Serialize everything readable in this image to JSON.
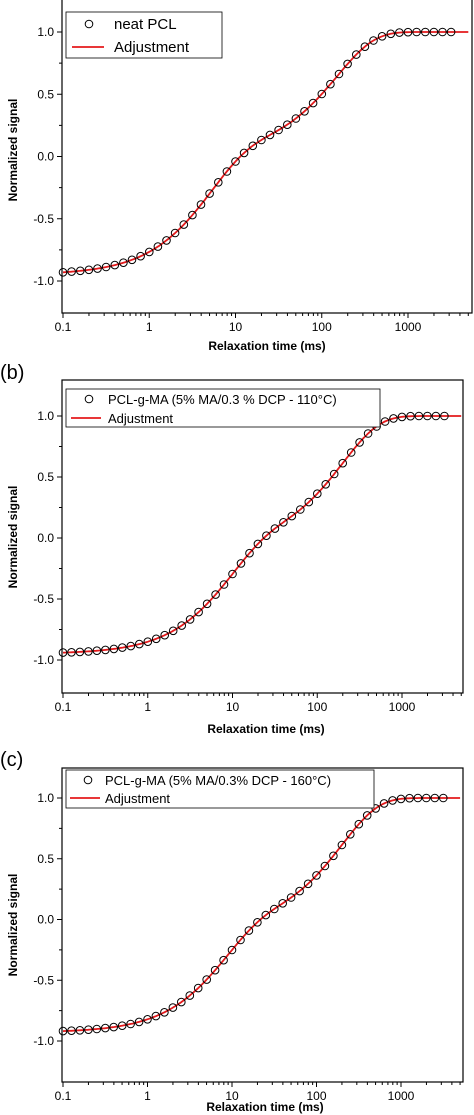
{
  "chart_data": [
    {
      "type": "scatter",
      "panel_label": "",
      "xlabel": "Relaxation time (ms)",
      "ylabel": "Normalized signal",
      "x_scale": "log",
      "xlim": [
        0.1,
        5000
      ],
      "ylim": [
        -1.25,
        1.25
      ],
      "x_ticks": [
        0.1,
        1,
        10,
        100,
        1000
      ],
      "x_tick_labels": [
        "0.1",
        "1",
        "10",
        "100",
        "1000"
      ],
      "y_ticks": [
        -1.0,
        -0.5,
        0.0,
        0.5,
        1.0
      ],
      "y_tick_labels": [
        "-1.0",
        "-0.5",
        "0.0",
        "0.5",
        "1.0"
      ],
      "legend_position": "top-left",
      "series": [
        {
          "name": "neat PCL",
          "kind": "markers",
          "marker": "open-circle",
          "color": "#000000",
          "model": {
            "y0": -0.95,
            "a1": 0.97,
            "t1": 150,
            "a2": 0.98,
            "t2": 5.0
          }
        },
        {
          "name": "Adjustment",
          "kind": "line",
          "color": "#e41a1c",
          "model": {
            "y0": -0.95,
            "a1": 0.97,
            "t1": 150,
            "a2": 0.98,
            "t2": 5.0
          }
        }
      ]
    },
    {
      "type": "scatter",
      "panel_label": "(b)",
      "xlabel": "Relaxation time (ms)",
      "ylabel": "Normalized signal",
      "x_scale": "log",
      "xlim": [
        0.1,
        5000
      ],
      "ylim": [
        -1.25,
        1.25
      ],
      "x_ticks": [
        0.1,
        1,
        10,
        100,
        1000
      ],
      "x_tick_labels": [
        "0.1",
        "1",
        "10",
        "100",
        "1000"
      ],
      "y_ticks": [
        -1.0,
        -0.5,
        0.0,
        0.5,
        1.0
      ],
      "y_tick_labels": [
        "-1.0",
        "-0.5",
        "0.0",
        "0.5",
        "1.0"
      ],
      "legend_position": "top-left",
      "series": [
        {
          "name": "PCL-g-MA (5% MA/0.3 % DCP - 110°C)",
          "kind": "markers",
          "marker": "open-circle",
          "color": "#000000",
          "model": {
            "y0": -0.95,
            "a1": 1.05,
            "t1": 200,
            "a2": 0.9,
            "t2": 9.0
          }
        },
        {
          "name": "Adjustment",
          "kind": "line",
          "color": "#e41a1c",
          "model": {
            "y0": -0.95,
            "a1": 1.05,
            "t1": 200,
            "a2": 0.9,
            "t2": 9.0
          }
        }
      ]
    },
    {
      "type": "scatter",
      "panel_label": "(c)",
      "xlabel": "Relaxation time (ms)",
      "ylabel": "Normalized signal",
      "x_scale": "log",
      "xlim": [
        0.1,
        5000
      ],
      "ylim": [
        -1.25,
        1.25
      ],
      "x_ticks": [
        0.1,
        1,
        10,
        100,
        1000
      ],
      "x_tick_labels": [
        "0.1",
        "1",
        "10",
        "100",
        "1000"
      ],
      "y_ticks": [
        -1.0,
        -0.5,
        0.0,
        0.5,
        1.0
      ],
      "y_tick_labels": [
        "-1.0",
        "-0.5",
        "0.0",
        "0.5",
        "1.0"
      ],
      "legend_position": "top-left",
      "series": [
        {
          "name": "PCL-g-MA (5% MA/0.3% DCP - 160°C)",
          "kind": "markers",
          "marker": "open-circle",
          "color": "#000000",
          "model": {
            "y0": -0.93,
            "a1": 1.05,
            "t1": 200,
            "a2": 0.88,
            "t2": 8.0
          }
        },
        {
          "name": "Adjustment",
          "kind": "line",
          "color": "#e41a1c",
          "model": {
            "y0": -0.93,
            "a1": 1.05,
            "t1": 200,
            "a2": 0.88,
            "t2": 8.0
          }
        }
      ]
    }
  ]
}
